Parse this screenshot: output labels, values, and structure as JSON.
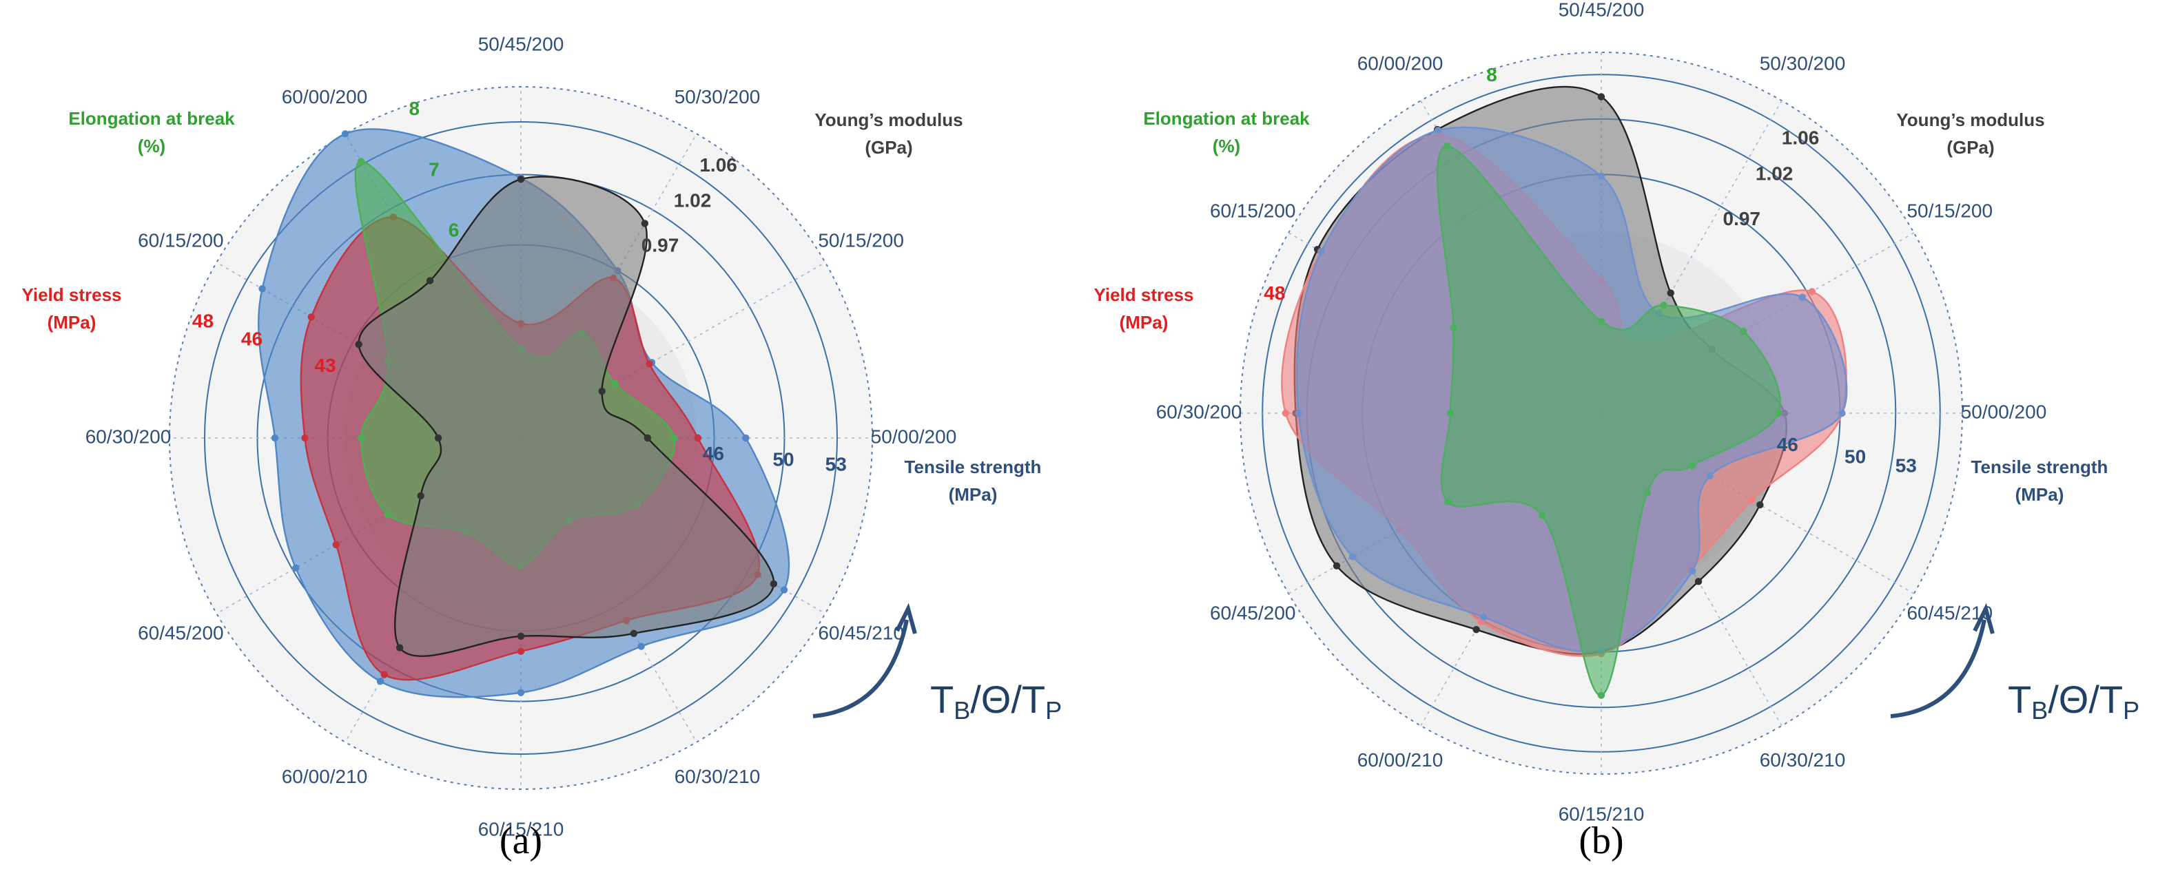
{
  "chart_data": [
    {
      "type": "radar",
      "label": "(a)",
      "categories": [
        "50/45/200",
        "50/30/200",
        "50/15/200",
        "50/00/200",
        "60/45/210",
        "60/30/210",
        "60/15/210",
        "60/00/210",
        "60/45/200",
        "60/30/200",
        "60/15/200",
        "60/00/200"
      ],
      "series": [
        {
          "name": "Tensile strength",
          "unit": "(MPa)",
          "color": "#4f86c6",
          "rlim": [
            35,
            55
          ],
          "rticks": [
            46,
            50,
            53
          ],
          "values": [
            49.8,
            46,
            43.6,
            47.8,
            52.3,
            48.7,
            49.5,
            51,
            49.8,
            49,
            52,
            55
          ]
        },
        {
          "name": "Yield stress",
          "unit": "(MPa)",
          "color": "#c8323e",
          "rlim": [
            35,
            48.5
          ],
          "rticks": [
            43,
            46,
            48
          ],
          "values": [
            39.4,
            42.1,
            40.7,
            41.8,
            45.5,
            43.1,
            43.2,
            45.5,
            43.2,
            43.3,
            44.3,
            44.8
          ]
        },
        {
          "name": "Elongation at break",
          "unit": "(%)",
          "color": "#4caf50",
          "rlim": [
            2.6,
            8.1
          ],
          "rticks": [
            6,
            7,
            8
          ],
          "values": [
            4,
            4.5,
            4.3,
            5,
            4.7,
            4.1,
            4.6,
            4.3,
            5,
            5.1,
            5,
            7.6
          ]
        },
        {
          "name": "Young’s modulus",
          "unit": "(GPa)",
          "color": "#7f7f7f",
          "rlim": [
            0.755,
            1.074
          ],
          "rticks": [
            0.97,
            1.02,
            1.06
          ],
          "values": [
            0.99,
            0.98,
            0.84,
            0.87,
            1.02,
            0.96,
            0.935,
            0.975,
            0.86,
            0.83,
            0.925,
            0.92
          ]
        }
      ],
      "annotation": [
        "T",
        "B",
        "/Θ/T",
        "P"
      ]
    },
    {
      "type": "radar",
      "label": "(b)",
      "categories": [
        "50/45/200",
        "50/30/200",
        "50/15/200",
        "50/00/200",
        "60/45/210",
        "60/30/210",
        "60/15/210",
        "60/00/210",
        "60/45/200",
        "60/30/200",
        "60/15/200",
        "60/00/200"
      ],
      "series": [
        {
          "name": "Young’s modulus",
          "unit": "(GPa)",
          "color": "#7f7f7f",
          "rlim": [
            0.755,
            1.08
          ],
          "rticks": [
            0.97,
            1.02,
            1.06
          ],
          "values": [
            1.04,
            0.88,
            0.87,
            0.92,
            0.92,
            0.93,
            0.97,
            0.98,
            1.03,
            1.03,
            1.05,
            1.05
          ]
        },
        {
          "name": "Yield stress",
          "unit": "(MPa)",
          "color": "#f08080",
          "rlim": [
            35,
            48.5
          ],
          "rticks": [
            48
          ],
          "values": [
            40,
            38,
            44.1,
            44,
            41.5,
            41.7,
            44,
            44,
            43.7,
            46.8,
            47.1,
            47
          ]
        },
        {
          "name": "Tensile strength",
          "unit": "(MPa)",
          "color": "#6f8fcf",
          "rlim": [
            35,
            56
          ],
          "rticks": [
            46,
            50,
            53
          ],
          "values": [
            48.8,
            41.7,
            48.5,
            49,
            42.3,
            45.6,
            48.8,
            48.7,
            51.7,
            52.6,
            53.8,
            54
          ]
        },
        {
          "name": "Elongation at break",
          "unit": "(%)",
          "color": "#4caf60",
          "rlim": [
            2.6,
            8.1
          ],
          "rticks": [
            8
          ],
          "values": [
            4,
            4.5,
            5.1,
            5.3,
            4.2,
            4,
            6.9,
            4.4,
            5.3,
            4.9,
            5.2,
            7.3
          ]
        }
      ],
      "annotation": [
        "T",
        "B",
        "/Θ/T",
        "P"
      ]
    }
  ]
}
